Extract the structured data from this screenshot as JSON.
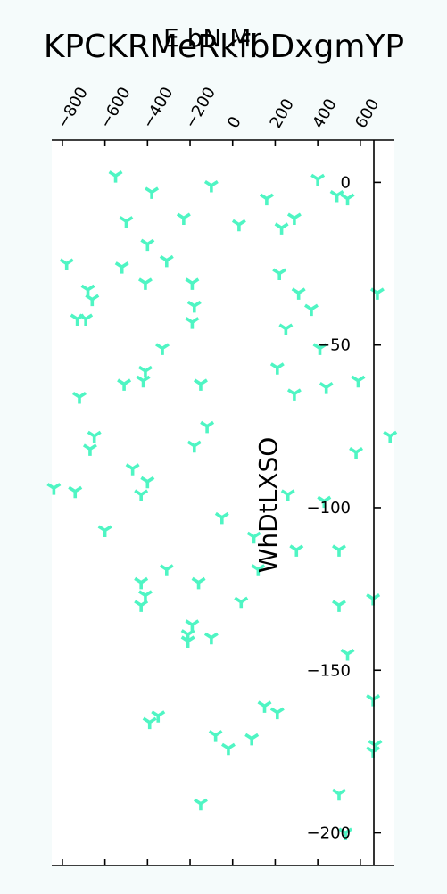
{
  "chart_data": {
    "type": "scatter",
    "title": "KPCKRMeRkfbDxgmYP",
    "xlabel": "E bN Mr",
    "ylabel": "WhDtLXSO",
    "xlim": [
      -850,
      760
    ],
    "ylim": [
      -210,
      13
    ],
    "x_axis_position": "top",
    "y_axis_position": "right",
    "x_ticks": [
      -800,
      -600,
      -400,
      -200,
      0,
      200,
      400,
      600
    ],
    "x_tick_labels": [
      "−800",
      "−600",
      "−400",
      "−200",
      "0",
      "200",
      "400",
      "600"
    ],
    "y_ticks": [
      0,
      -50,
      -100,
      -150,
      -200
    ],
    "y_tick_labels": [
      "0",
      "−50",
      "−100",
      "−150",
      "−200"
    ],
    "grid": false,
    "marker": "tri_down",
    "color": "#4ff5c3",
    "points": [
      [
        -550,
        2
      ],
      [
        -380,
        -3
      ],
      [
        -100,
        -1
      ],
      [
        160,
        -5
      ],
      [
        400,
        1
      ],
      [
        490,
        -4
      ],
      [
        540,
        -5
      ],
      [
        -500,
        -12
      ],
      [
        -230,
        -11
      ],
      [
        30,
        -13
      ],
      [
        230,
        -14
      ],
      [
        290,
        -11
      ],
      [
        -400,
        -19
      ],
      [
        -780,
        -25
      ],
      [
        -520,
        -26
      ],
      [
        -310,
        -24
      ],
      [
        220,
        -28
      ],
      [
        -680,
        -33
      ],
      [
        -660,
        -36
      ],
      [
        -410,
        -31
      ],
      [
        -190,
        -31
      ],
      [
        310,
        -34
      ],
      [
        680,
        -34
      ],
      [
        -730,
        -42
      ],
      [
        -690,
        -42
      ],
      [
        -180,
        -38
      ],
      [
        -190,
        -43
      ],
      [
        250,
        -45
      ],
      [
        370,
        -39
      ],
      [
        410,
        -51
      ],
      [
        -330,
        -51
      ],
      [
        -410,
        -58
      ],
      [
        -420,
        -61
      ],
      [
        -510,
        -62
      ],
      [
        -150,
        -62
      ],
      [
        210,
        -57
      ],
      [
        290,
        -65
      ],
      [
        440,
        -63
      ],
      [
        590,
        -61
      ],
      [
        -720,
        -66
      ],
      [
        -650,
        -78
      ],
      [
        -670,
        -82
      ],
      [
        -120,
        -75
      ],
      [
        -180,
        -81
      ],
      [
        740,
        -78
      ],
      [
        580,
        -83
      ],
      [
        -470,
        -88
      ],
      [
        -400,
        -92
      ],
      [
        -430,
        -96
      ],
      [
        -840,
        -94
      ],
      [
        -740,
        -95
      ],
      [
        -600,
        -107
      ],
      [
        -50,
        -103
      ],
      [
        260,
        -96
      ],
      [
        100,
        -109
      ],
      [
        300,
        -113
      ],
      [
        430,
        -98
      ],
      [
        500,
        -113
      ],
      [
        -430,
        -123
      ],
      [
        -410,
        -127
      ],
      [
        -430,
        -130
      ],
      [
        -310,
        -119
      ],
      [
        -160,
        -123
      ],
      [
        120,
        -119
      ],
      [
        40,
        -129
      ],
      [
        500,
        -130
      ],
      [
        660,
        -128
      ],
      [
        -190,
        -136
      ],
      [
        -210,
        -139
      ],
      [
        -210,
        -141
      ],
      [
        -100,
        -140
      ],
      [
        540,
        -145
      ],
      [
        660,
        -159
      ],
      [
        150,
        -161
      ],
      [
        210,
        -163
      ],
      [
        -350,
        -164
      ],
      [
        -390,
        -166
      ],
      [
        -80,
        -170
      ],
      [
        -20,
        -174
      ],
      [
        90,
        -171
      ],
      [
        -150,
        -191
      ],
      [
        500,
        -188
      ],
      [
        670,
        -173
      ],
      [
        660,
        -175
      ],
      [
        530,
        -200
      ]
    ]
  }
}
